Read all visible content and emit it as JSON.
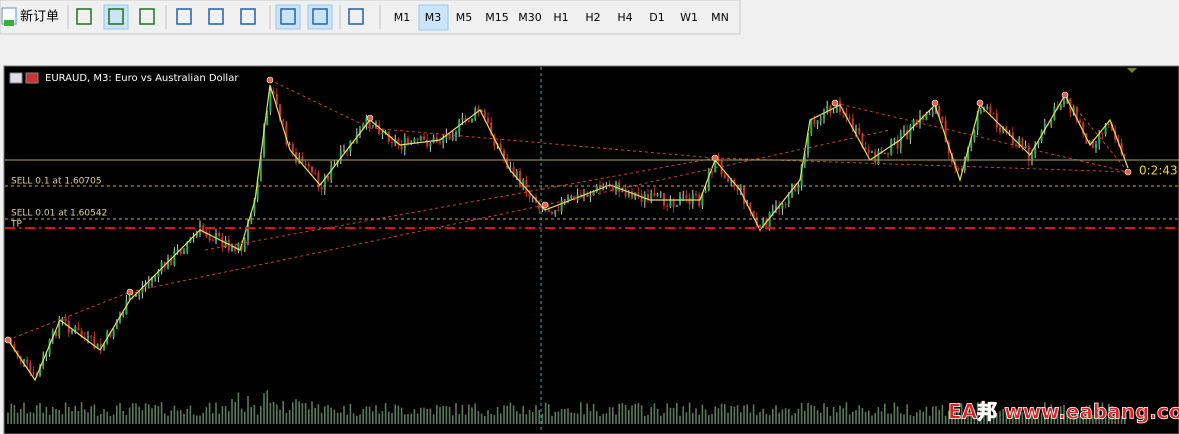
{
  "toolbar": {
    "new_order": "新订单",
    "timeframes": [
      "M1",
      "M3",
      "M5",
      "M15",
      "M30",
      "H1",
      "H2",
      "H4",
      "D1",
      "W1",
      "MN"
    ],
    "active_timeframe": "M3"
  },
  "chart": {
    "title": "EURAUD, M3:  Euro vs Australian Dollar",
    "orders": [
      {
        "label": "SELL 0.1 at 1.60705"
      },
      {
        "label": "SELL 0.01 at 1.60542"
      }
    ],
    "tp_label": "TP",
    "countdown": "0:2:43"
  },
  "watermark": "EA邦 www.eabang.com"
}
